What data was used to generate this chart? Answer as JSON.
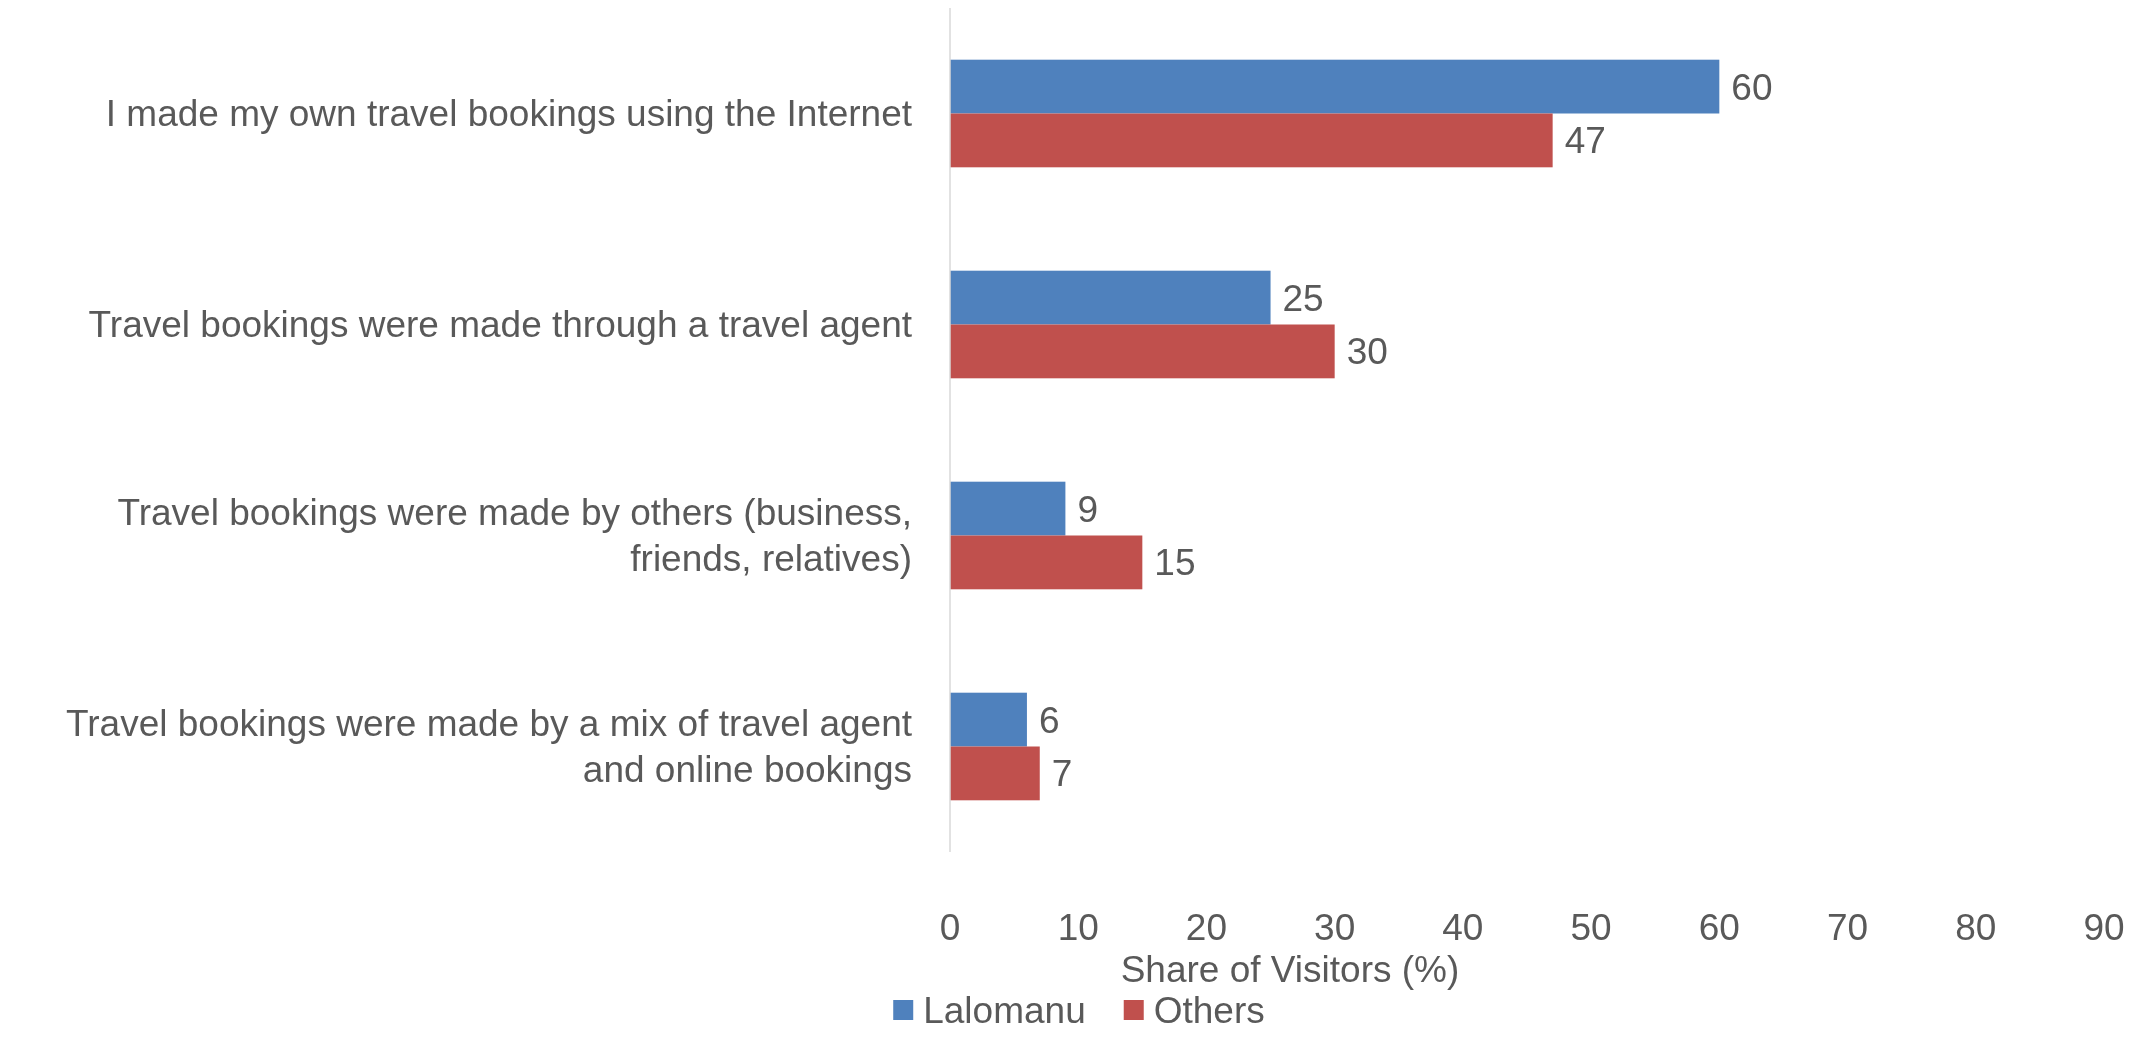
{
  "chart_data": {
    "type": "bar",
    "orientation": "horizontal",
    "xlabel": "Share of Visitors (%)",
    "categories": [
      "I made my own travel bookings using the Internet",
      "Travel bookings were made through a travel agent",
      "Travel bookings were made by others (business, friends, relatives)",
      "Travel bookings were made by a mix of travel agent and online bookings"
    ],
    "series": [
      {
        "name": "Lalomanu",
        "color": "#4f81bd",
        "values": [
          60,
          25,
          9,
          6
        ]
      },
      {
        "name": "Others",
        "color": "#c0504d",
        "values": [
          47,
          30,
          15,
          7
        ]
      }
    ],
    "xlim": [
      0,
      90
    ],
    "xticks": [
      0,
      10,
      20,
      30,
      40,
      50,
      60,
      70,
      80,
      90
    ],
    "data_labels": true,
    "legend": "bottom",
    "grid": false
  }
}
